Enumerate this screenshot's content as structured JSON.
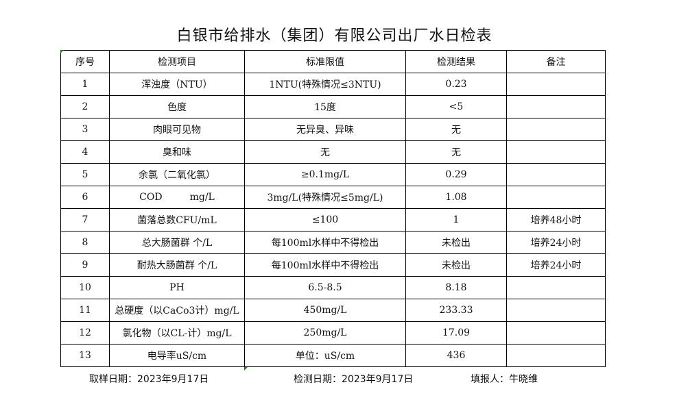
{
  "title": "白银市给排水（集团）有限公司出厂水日检表",
  "table": {
    "headers": [
      "序号",
      "检测项目",
      "标准限值",
      "检测结果",
      "备注"
    ],
    "rows": [
      [
        "1",
        "浑浊度（NTU）",
        "1NTU(特殊情况≤3NTU)",
        "0.23",
        ""
      ],
      [
        "2",
        "色度",
        "15度",
        "<5",
        ""
      ],
      [
        "3",
        "肉眼可见物",
        "无异臭、异味",
        "无",
        ""
      ],
      [
        "4",
        "臭和味",
        "无",
        "无",
        ""
      ],
      [
        "5",
        "余氯（二氧化氯）",
        "≥0.1mg/L",
        "0.29",
        ""
      ],
      [
        "6",
        "COD         mg/L",
        "3mg/L(特殊情况≤5mg/L)",
        "1.08",
        ""
      ],
      [
        "7",
        "菌落总数CFU/mL",
        "≤100",
        "1",
        "培养48小时"
      ],
      [
        "8",
        "总大肠菌群 个/L",
        "每100ml水样中不得检出",
        "未检出",
        "培养24小时"
      ],
      [
        "9",
        "耐热大肠菌群 个/L",
        "每100ml水样中不得检出",
        "未检出",
        "培养24小时"
      ],
      [
        "10",
        "PH",
        "6.5-8.5",
        "8.18",
        ""
      ],
      [
        "11",
        "总硬度（以CaCo3计）mg/L",
        "450mg/L",
        "233.33",
        ""
      ],
      [
        "12",
        "氯化物（以CL-计）mg/L",
        "250mg/L",
        "17.09",
        ""
      ],
      [
        "13",
        "电导率uS/cm",
        "单位：uS/cm",
        "436",
        ""
      ]
    ]
  },
  "footer": {
    "sampling_date": "取样日期：2023年9月17日",
    "test_date": "检测日期：2023年9月17日",
    "reporter": "填报人：牛晓维"
  },
  "colors": {
    "cell_marker": "#1e7a1e",
    "border": "#000000"
  }
}
